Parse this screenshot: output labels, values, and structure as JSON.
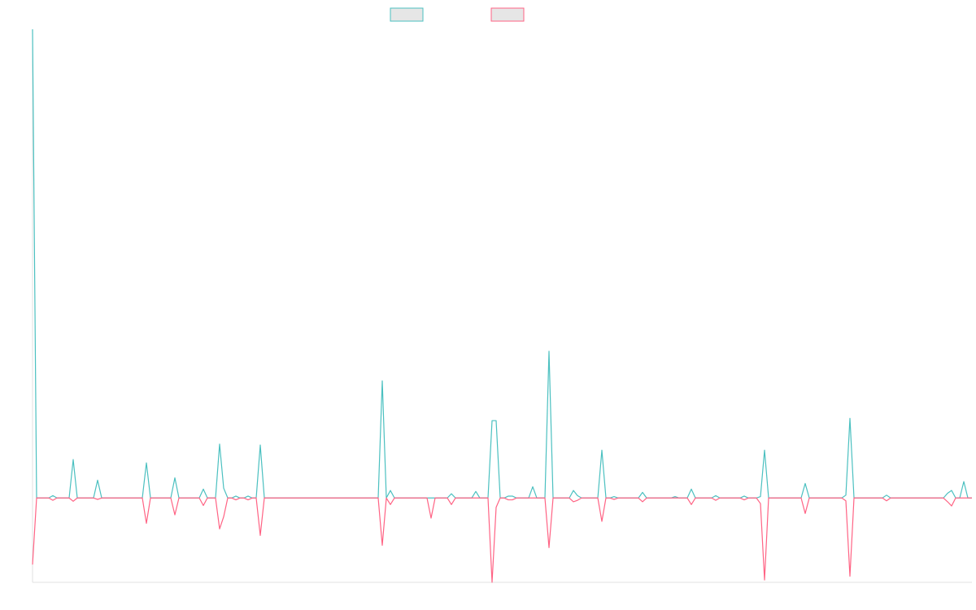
{
  "chart_data": {
    "type": "line",
    "legend": "top",
    "ylim": [
      -18,
      100
    ],
    "series": [
      {
        "color": "#4bc0c0",
        "values": [
          100,
          0,
          0,
          0,
          0,
          0.5,
          0,
          0,
          0,
          0,
          8.2,
          0,
          0,
          0,
          0,
          0,
          3.8,
          0,
          0,
          0,
          0,
          0,
          0,
          0,
          0,
          0,
          0,
          0,
          7.5,
          0,
          0,
          0,
          0,
          0,
          0,
          4.3,
          0,
          0,
          0,
          0,
          0,
          0,
          1.9,
          0,
          0,
          0,
          11.5,
          2.1,
          0,
          0,
          0.4,
          0,
          0,
          0.4,
          0,
          0,
          11.3,
          0,
          0,
          0,
          0,
          0,
          0,
          0,
          0,
          0,
          0,
          0,
          0,
          0,
          0,
          0,
          0,
          0,
          0,
          0,
          0,
          0,
          0,
          0,
          0,
          0,
          0,
          0,
          0,
          0,
          25,
          0,
          1.6,
          0,
          0,
          0,
          0,
          0,
          0,
          0,
          0,
          0,
          0,
          0,
          0,
          0,
          0,
          0.9,
          0,
          0,
          0,
          0,
          0,
          1.4,
          0,
          0,
          0,
          16.5,
          16.5,
          0,
          0,
          0.4,
          0.4,
          0,
          0,
          0,
          0,
          2.4,
          0,
          0,
          0,
          31.3,
          0,
          0,
          0,
          0,
          0,
          1.6,
          0.5,
          0,
          0,
          0,
          0,
          0,
          10.2,
          0,
          0,
          0.3,
          0,
          0,
          0,
          0,
          0,
          0,
          1.2,
          0,
          0,
          0,
          0,
          0,
          0,
          0,
          0.3,
          0,
          0,
          0,
          1.9,
          0,
          0,
          0,
          0,
          0,
          0.5,
          0,
          0,
          0,
          0,
          0,
          0,
          0.4,
          0,
          0,
          0,
          0.3,
          10.2,
          0,
          0,
          0,
          0,
          0,
          0,
          0,
          0,
          0,
          3.1,
          0,
          0,
          0,
          0,
          0,
          0,
          0,
          0,
          0,
          0.6,
          17,
          0,
          0,
          0,
          0,
          0,
          0,
          0,
          0,
          0.6,
          0,
          0,
          0,
          0,
          0,
          0,
          0,
          0,
          0,
          0,
          0,
          0,
          0,
          0,
          1,
          1.6,
          0,
          0,
          3.5,
          0,
          0
        ]
      },
      {
        "color": "#ff6384",
        "values": [
          -14.2,
          0,
          0,
          0,
          0,
          -0.5,
          0,
          0,
          0,
          0,
          -0.7,
          0,
          0,
          0,
          0,
          0,
          -0.3,
          0,
          0,
          0,
          0,
          0,
          0,
          0,
          0,
          0,
          0,
          0,
          -5.4,
          0,
          0,
          0,
          0,
          0,
          0,
          -3.6,
          0,
          0,
          0,
          0,
          0,
          0,
          -1.6,
          0,
          0,
          0,
          -6.6,
          -4,
          0,
          0,
          -0.4,
          0,
          0,
          -0.4,
          0,
          0,
          -8,
          0,
          0,
          0,
          0,
          0,
          0,
          0,
          0,
          0,
          0,
          0,
          0,
          0,
          0,
          0,
          0,
          0,
          0,
          0,
          0,
          0,
          0,
          0,
          0,
          0,
          0,
          0,
          0,
          0,
          -10.1,
          0,
          -1.4,
          0,
          0,
          0,
          0,
          0,
          0,
          0,
          0,
          0,
          -4.3,
          0,
          0,
          0,
          0,
          -1.4,
          0,
          0,
          0,
          0,
          0,
          0,
          0,
          0,
          0,
          -18,
          -2,
          0,
          0,
          -0.4,
          -0.4,
          0,
          0,
          0,
          0,
          0,
          0,
          0,
          0,
          -10.6,
          0,
          0,
          0,
          0,
          0,
          -0.8,
          -0.5,
          0,
          0,
          0,
          0,
          0,
          -5,
          0,
          0,
          -0.3,
          0,
          0,
          0,
          0,
          0,
          0,
          -0.8,
          0,
          0,
          0,
          0,
          0,
          0,
          0,
          0,
          0,
          0,
          0,
          -1.4,
          0,
          0,
          0,
          0,
          0,
          -0.5,
          0,
          0,
          0,
          0,
          0,
          0,
          -0.4,
          0,
          0,
          0,
          -1.2,
          -17.5,
          0,
          0,
          0,
          0,
          0,
          0,
          0,
          0,
          0,
          -3.3,
          0,
          0,
          0,
          0,
          0,
          0,
          0,
          0,
          0,
          -0.6,
          -16.7,
          0,
          0,
          0,
          0,
          0,
          0,
          0,
          0,
          -0.6,
          0,
          0,
          0,
          0,
          0,
          0,
          0,
          0,
          0,
          0,
          0,
          0,
          0,
          0,
          -0.8,
          -1.7,
          0,
          0,
          0,
          0,
          0
        ]
      }
    ]
  }
}
